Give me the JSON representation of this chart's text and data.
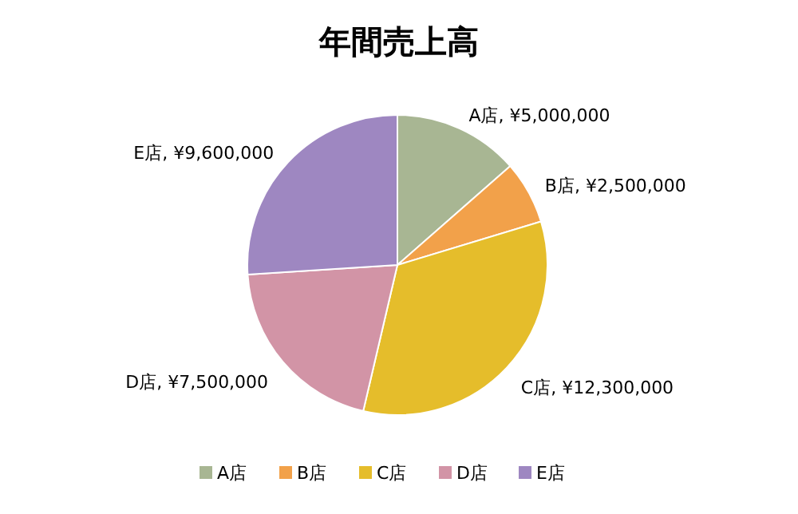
{
  "chart_data": {
    "type": "pie",
    "title": "年間売上高",
    "categories": [
      "A店",
      "B店",
      "C店",
      "D店",
      "E店"
    ],
    "values": [
      5000000,
      2500000,
      12300000,
      7500000,
      9600000
    ],
    "colors": [
      "#a8b693",
      "#f2a14a",
      "#e5bd2b",
      "#d294a6",
      "#9e87c1"
    ],
    "value_labels": [
      "A店, ¥5,000,000",
      "B店, ¥2,500,000",
      "C店, ¥12,300,000",
      "D店, ¥7,500,000",
      "E店, ¥9,600,000"
    ],
    "legend": "bottom"
  }
}
